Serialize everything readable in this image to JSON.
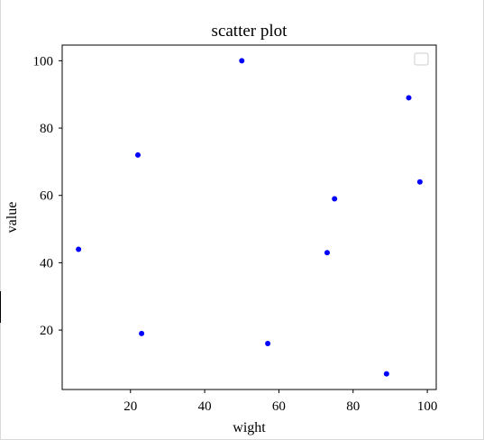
{
  "chart_data": {
    "type": "scatter",
    "title": "scatter plot",
    "xlabel": "wight",
    "ylabel": "value",
    "xlim": [
      1.6,
      102.4
    ],
    "ylim": [
      2.35,
      104.65
    ],
    "xticks": [
      20,
      40,
      60,
      80,
      100
    ],
    "yticks": [
      20,
      40,
      60,
      80,
      100
    ],
    "grid": false,
    "legend": "upper right (empty)",
    "series": [
      {
        "color": "#0000ff",
        "marker": "circle",
        "points": [
          {
            "x": 6,
            "y": 44
          },
          {
            "x": 22,
            "y": 72
          },
          {
            "x": 23,
            "y": 19
          },
          {
            "x": 50,
            "y": 100
          },
          {
            "x": 57,
            "y": 16
          },
          {
            "x": 73,
            "y": 43
          },
          {
            "x": 75,
            "y": 59
          },
          {
            "x": 89,
            "y": 7
          },
          {
            "x": 95,
            "y": 89
          },
          {
            "x": 98,
            "y": 64
          }
        ]
      }
    ]
  }
}
